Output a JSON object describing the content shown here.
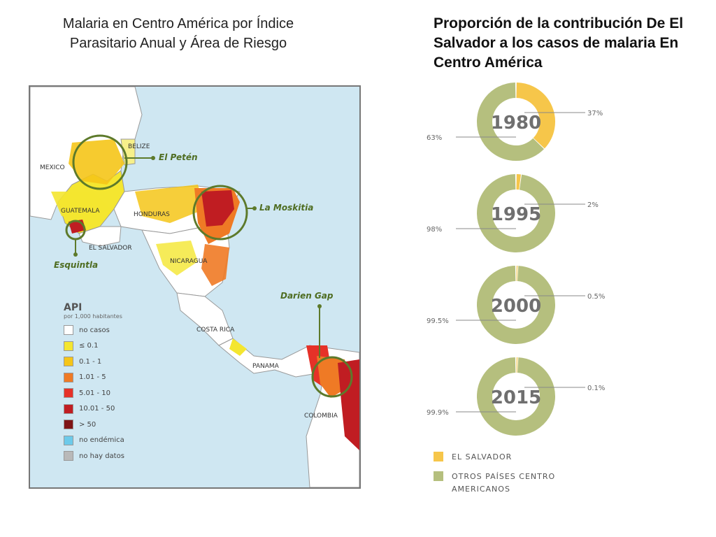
{
  "left_title": "Malaria en Centro América por Índice Parasitario Anual y Área de Riesgo",
  "right_title": "Proporción de la contribución De El Salvador a los casos de malaria En Centro América",
  "map": {
    "countries": {
      "mexico": "MEXICO",
      "belize": "BELIZE",
      "guatemala": "GUATEMALA",
      "honduras": "HONDURAS",
      "el_salvador": "EL SALVADOR",
      "nicaragua": "NICARAGUA",
      "costa_rica": "COSTA RICA",
      "panama": "PANAMA",
      "colombia": "COLOMBIA"
    },
    "hotspots": {
      "el_peten": "El Petén",
      "la_moskitia": "La Moskitia",
      "esquintla": "Esquintla",
      "darien_gap": "Darien Gap"
    },
    "legend": {
      "title": "API",
      "subtitle": "por 1,000 habitantes",
      "items": [
        {
          "label": "no casos",
          "color": "#ffffff"
        },
        {
          "label": "≤ 0.1",
          "color": "#f4e630"
        },
        {
          "label": "0.1 - 1",
          "color": "#f5c518"
        },
        {
          "label": "1.01 - 5",
          "color": "#ef7a25"
        },
        {
          "label": "5.01 - 10",
          "color": "#e63128"
        },
        {
          "label": "10.01 - 50",
          "color": "#c01d22"
        },
        {
          "label": "> 50",
          "color": "#7e1416"
        },
        {
          "label": "no endémica",
          "color": "#6dcaea"
        },
        {
          "label": "no hay datos",
          "color": "#b9b9b9"
        }
      ]
    }
  },
  "chart_data": {
    "type": "pie",
    "charts": [
      {
        "year": "1980",
        "el_salvador": 37,
        "others": 63,
        "el_salvador_label": "37%",
        "others_label": "63%"
      },
      {
        "year": "1995",
        "el_salvador": 2,
        "others": 98,
        "el_salvador_label": "2%",
        "others_label": "98%"
      },
      {
        "year": "2000",
        "el_salvador": 0.5,
        "others": 99.5,
        "el_salvador_label": "0.5%",
        "others_label": "99.5%"
      },
      {
        "year": "2015",
        "el_salvador": 0.1,
        "others": 99.9,
        "el_salvador_label": "0.1%",
        "others_label": "99.9%"
      }
    ],
    "colors": {
      "el_salvador": "#f6c64a",
      "others": "#b5bf7e"
    },
    "legend": [
      "EL SALVADOR",
      "OTROS PAÍSES CENTRO AMERICANOS"
    ]
  }
}
